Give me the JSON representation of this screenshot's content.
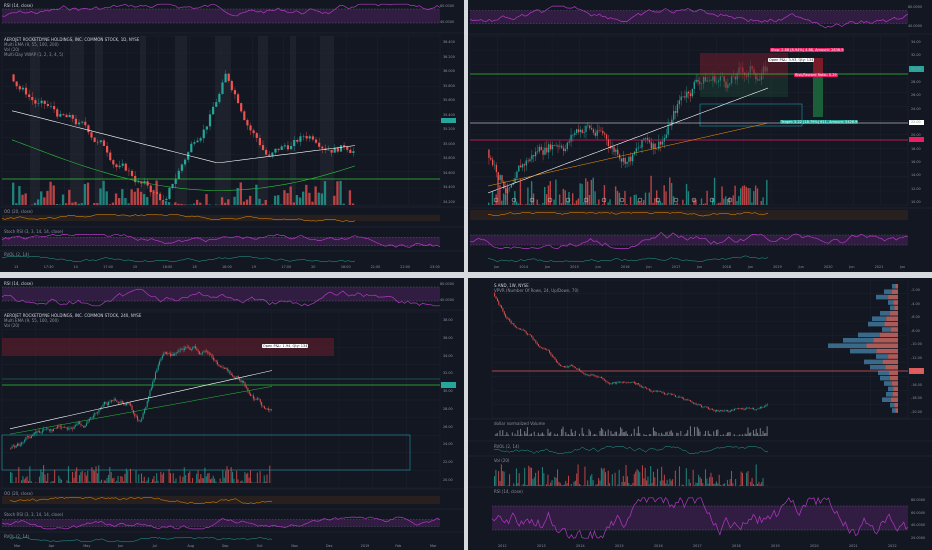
{
  "theme": {
    "bg": "#131722",
    "grid": "#1e2230",
    "up": "#26a69a",
    "down": "#ef5350",
    "rsi": "#b239c3",
    "rsi_band": "#3a1f4a",
    "green_line": "#2bc43a",
    "pink_line": "#e91e63",
    "teal_box": "#1f9aa8"
  },
  "panes": [
    {
      "id": "p1",
      "top_indicator": {
        "title": "RSI (14, close)",
        "scale": [
          "80.0000",
          "40.0000"
        ]
      },
      "symbol": "AEROJET ROCKETDYNE HOLDINGS, INC. COMMON STOCK, 1D, NYSE",
      "studies": [
        "Multi EMA (9, 55, 100, 200)",
        "Vol (20)",
        "Multi-Day VWAP (1, 2, 3, 4, 5)"
      ],
      "price_scale": [
        "36.400",
        "36.200",
        "36.000",
        "35.800",
        "35.600",
        "35.400",
        "35.200",
        "35.000",
        "34.800",
        "34.600",
        "34.400",
        "34.200"
      ],
      "oo_label": "OO (20, close)",
      "stoch_label": "Stoch RSI (3, 3, 14, 14, close)",
      "rvol_label": "RVOL (2, 14)",
      "x_labels": [
        "13",
        "17:30",
        "14",
        "17:00",
        "15",
        "16:00",
        "18",
        "16:00",
        "19",
        "17:00",
        "20",
        "16:00",
        "21:00",
        "22:00",
        "23:00"
      ]
    },
    {
      "id": "p2",
      "top_indicator": {
        "title": "RSI",
        "scale": [
          "80.0000",
          "40.0000"
        ]
      },
      "price_scale": [
        "34.00",
        "32.00",
        "30.00",
        "28.00",
        "26.00",
        "24.00",
        "22.00",
        "20.00",
        "18.00",
        "16.00",
        "14.00",
        "12.00",
        "10.00"
      ],
      "tags": [
        {
          "text": "Stop: 2.88 (8.94%) 4.88, Amount: 2836.9",
          "color": "#e91e63"
        },
        {
          "text": "Open P&L: 3.93, Qty: 134",
          "color": "#ffffff"
        },
        {
          "text": "Risk/Reward Ratio: 0.29",
          "color": "#e91e63"
        },
        {
          "text": "Target: 5.22 (18.79%) 611, Amount: 5426.9",
          "color": "#26a69a"
        }
      ],
      "x_labels": [
        "Jun",
        "2014",
        "Jun",
        "2015",
        "Jun",
        "2016",
        "Jun",
        "2017",
        "Jun",
        "2018",
        "Jun",
        "2019",
        "Jun",
        "2020",
        "Jun",
        "2021",
        "Jun"
      ]
    },
    {
      "id": "p3",
      "top_indicator": {
        "title": "RSI (14, close)",
        "scale": [
          "80.0000",
          "40.0000"
        ]
      },
      "symbol": "AEROJET ROCKETDYNE HOLDINGS, INC. COMMON STOCK, 240, NYSE",
      "studies": [
        "Multi EMA (9, 55, 100, 200)",
        "Vol (20)"
      ],
      "tag": {
        "text": "Open P&L: 1.94, Qty: 134",
        "color": "#ffffff"
      },
      "price_scale": [
        "38.00",
        "36.00",
        "34.00",
        "32.00",
        "30.00",
        "28.00",
        "26.00",
        "24.00",
        "22.00",
        "20.00"
      ],
      "oo_label": "OO (20, close)",
      "stoch_label": "Stoch RSI (3, 3, 14, 14, close)",
      "rvol_label": "RVOL (2, 14)",
      "x_labels": [
        "Mar",
        "Apr",
        "May",
        "Jun",
        "Jul",
        "Aug",
        "Sep",
        "Oct",
        "Nov",
        "Dec",
        "2019",
        "Feb",
        "Mar"
      ]
    },
    {
      "id": "p4",
      "symbol": "S AND, 1W, NYSE",
      "studies": [
        "VPVR (Number Of Rows, 24, Up/Down, 70)"
      ],
      "price_scale": [
        "-2.00",
        "-4.00",
        "-6.00",
        "-8.00",
        "-10.00",
        "-12.00",
        "-14.00",
        "-16.00",
        "-18.00",
        "-20.00"
      ],
      "dollar_label": "dollar normalized Volume",
      "rvol_label": "RVOL (2, 14)",
      "vol_label": "Vol (20)",
      "rsi_label": "RSI (14, close)",
      "rsi_scale": [
        "80.0000",
        "60.0000",
        "40.0000",
        "20.0000"
      ],
      "x_labels": [
        "2012",
        "2013",
        "2014",
        "2015",
        "2016",
        "2017",
        "2018",
        "2019",
        "2020",
        "2021",
        "2022"
      ]
    }
  ]
}
